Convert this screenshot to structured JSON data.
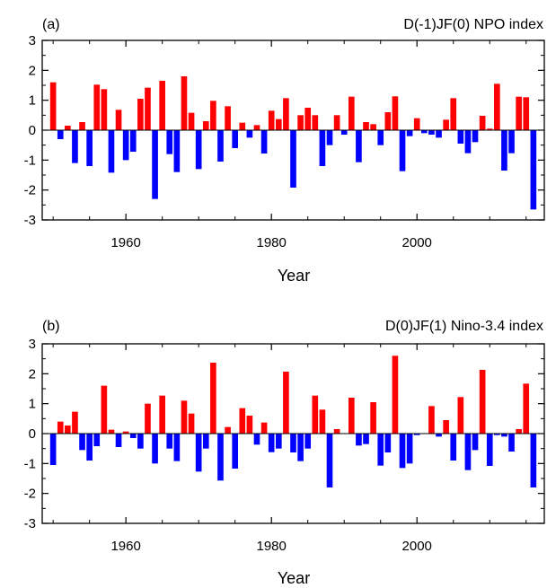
{
  "colors": {
    "positive": "#ff0000",
    "negative": "#0000ff",
    "frame": "#000000"
  },
  "chart_data": [
    {
      "type": "bar",
      "panel_label": "(a)",
      "title": "D(-1)JF(0) NPO index",
      "xlabel": "Year",
      "ylabel": "",
      "xlim": [
        1948.5,
        2017.5
      ],
      "ylim": [
        -3,
        3
      ],
      "xticks": [
        1960,
        1980,
        2000
      ],
      "xtick_labels": [
        "1960",
        "1980",
        "2000"
      ],
      "yticks": [
        -3,
        -2,
        -1,
        0,
        1,
        2,
        3
      ],
      "ytick_labels": [
        "-3",
        "-2",
        "-1",
        "0",
        "1",
        "2",
        "3"
      ],
      "grid": false,
      "x": [
        1950,
        1951,
        1952,
        1953,
        1954,
        1955,
        1956,
        1957,
        1958,
        1959,
        1960,
        1961,
        1962,
        1963,
        1964,
        1965,
        1966,
        1967,
        1968,
        1969,
        1970,
        1971,
        1972,
        1973,
        1974,
        1975,
        1976,
        1977,
        1978,
        1979,
        1980,
        1981,
        1982,
        1983,
        1984,
        1985,
        1986,
        1987,
        1988,
        1989,
        1990,
        1991,
        1992,
        1993,
        1994,
        1995,
        1996,
        1997,
        1998,
        1999,
        2000,
        2001,
        2002,
        2003,
        2004,
        2005,
        2006,
        2007,
        2008,
        2009,
        2010,
        2011,
        2012,
        2013,
        2014,
        2015,
        2016,
        2017
      ],
      "values": [
        1.6,
        -0.3,
        0.15,
        -1.1,
        0.27,
        -1.2,
        1.52,
        1.37,
        -1.42,
        0.68,
        -1.0,
        -0.72,
        1.05,
        1.42,
        -2.3,
        1.65,
        -0.8,
        -1.4,
        1.8,
        0.58,
        -1.3,
        0.3,
        0.98,
        -1.05,
        0.8,
        -0.6,
        0.25,
        -0.25,
        0.17,
        -0.78,
        0.65,
        0.37,
        1.07,
        -1.92,
        0.5,
        0.75,
        0.5,
        -1.2,
        -0.5,
        0.5,
        -0.15,
        1.12,
        -1.07,
        0.27,
        0.2,
        -0.5,
        0.6,
        1.13,
        -1.37,
        -0.2,
        0.4,
        -0.1,
        -0.15,
        -0.25,
        0.35,
        1.07,
        -0.45,
        -0.77,
        -0.4,
        0.48,
        0.05,
        1.55,
        -1.35,
        -0.77,
        1.12,
        1.1,
        -2.65,
        0.0
      ]
    },
    {
      "type": "bar",
      "panel_label": "(b)",
      "title": "D(0)JF(1) Nino-3.4 index",
      "xlabel": "Year",
      "ylabel": "",
      "xlim": [
        1948.5,
        2017.5
      ],
      "ylim": [
        -3,
        3
      ],
      "xticks": [
        1960,
        1980,
        2000
      ],
      "xtick_labels": [
        "1960",
        "1980",
        "2000"
      ],
      "yticks": [
        -3,
        -2,
        -1,
        0,
        1,
        2,
        3
      ],
      "ytick_labels": [
        "-3",
        "-2",
        "-1",
        "0",
        "1",
        "2",
        "3"
      ],
      "grid": false,
      "x": [
        1950,
        1951,
        1952,
        1953,
        1954,
        1955,
        1956,
        1957,
        1958,
        1959,
        1960,
        1961,
        1962,
        1963,
        1964,
        1965,
        1966,
        1967,
        1968,
        1969,
        1970,
        1971,
        1972,
        1973,
        1974,
        1975,
        1976,
        1977,
        1978,
        1979,
        1980,
        1981,
        1982,
        1983,
        1984,
        1985,
        1986,
        1987,
        1988,
        1989,
        1990,
        1991,
        1992,
        1993,
        1994,
        1995,
        1996,
        1997,
        1998,
        1999,
        2000,
        2001,
        2002,
        2003,
        2004,
        2005,
        2006,
        2007,
        2008,
        2009,
        2010,
        2011,
        2012,
        2013,
        2014,
        2015,
        2016,
        2017
      ],
      "values": [
        -1.05,
        0.4,
        0.27,
        0.73,
        -0.55,
        -0.9,
        -0.42,
        1.6,
        0.13,
        -0.45,
        0.07,
        -0.15,
        -0.5,
        1.0,
        -1.0,
        1.27,
        -0.5,
        -0.92,
        1.1,
        0.67,
        -1.27,
        -0.5,
        2.37,
        -1.57,
        0.22,
        -1.17,
        0.85,
        0.6,
        -0.37,
        0.37,
        -0.62,
        -0.5,
        2.07,
        -0.63,
        -0.92,
        -0.5,
        1.27,
        0.8,
        -1.8,
        0.15,
        0.0,
        1.2,
        -0.4,
        -0.35,
        1.05,
        -1.07,
        -0.63,
        2.6,
        -1.15,
        -1.0,
        -0.05,
        0.0,
        0.92,
        -0.1,
        0.45,
        -0.9,
        1.22,
        -1.22,
        -0.55,
        2.13,
        -1.08,
        -0.05,
        -0.1,
        -0.6,
        0.15,
        1.67,
        -1.8,
        0.0
      ]
    }
  ]
}
